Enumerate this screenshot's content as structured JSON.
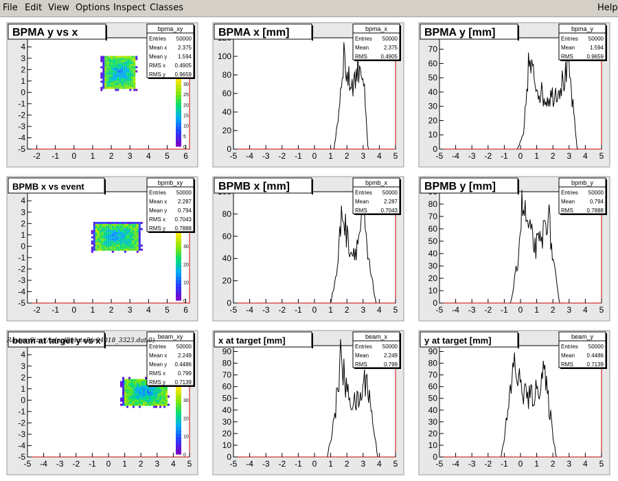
{
  "menu": {
    "file": "File",
    "edit": "Edit",
    "view": "View",
    "options": "Options",
    "inspect": "Inspect",
    "classes": "Classes",
    "help": "Help"
  },
  "caption": "Raster Size (/adaql2/data2/e04018_3323.dat.0)",
  "colors": {
    "pad_bg": "#e8e8e8",
    "frame_bg": "#ffffff",
    "axis_red": "#cc0000",
    "hist_line": "#000000"
  },
  "panels": [
    {
      "kind": "2d",
      "title": "BPMA y vs x",
      "stats": {
        "name": "bpma_xy",
        "rows": [
          [
            "Entries",
            "50000"
          ],
          [
            "Mean x",
            "2.375"
          ],
          [
            "Mean y",
            "1.594"
          ],
          [
            "RMS x",
            "0.4905"
          ],
          [
            "RMS y",
            "0.9659"
          ]
        ]
      },
      "xticks": [
        "-2",
        "-1",
        "0",
        "1",
        "2",
        "3",
        "4",
        "5",
        "6"
      ],
      "yticks": [
        "-5",
        "-4",
        "-3",
        "-2",
        "-1",
        "0",
        "1",
        "2",
        "3",
        "4"
      ],
      "zticks": [
        "0",
        "5",
        "10",
        "15",
        "20",
        "25",
        "30"
      ]
    },
    {
      "kind": "1d",
      "title": "BPMA x [mm]",
      "stats": {
        "name": "bpma_x",
        "rows": [
          [
            "Entries",
            "50000"
          ],
          [
            "Mean",
            "2.375"
          ],
          [
            "RMS",
            "0.4905"
          ]
        ]
      },
      "xticks": [
        "-5",
        "-4",
        "-3",
        "-2",
        "-1",
        "0",
        "1",
        "2",
        "3",
        "4",
        "5"
      ],
      "yticks": [
        "0",
        "20",
        "40",
        "60",
        "80",
        "100",
        "120"
      ]
    },
    {
      "kind": "1d",
      "title": "BPMA y [mm]",
      "stats": {
        "name": "bpma_y",
        "rows": [
          [
            "Entries",
            "50000"
          ],
          [
            "Mean",
            "1.594"
          ],
          [
            "RMS",
            "0.9659"
          ]
        ]
      },
      "xticks": [
        "-5",
        "-4",
        "-3",
        "-2",
        "-1",
        "0",
        "1",
        "2",
        "3",
        "4",
        "5"
      ],
      "yticks": [
        "0",
        "10",
        "20",
        "30",
        "40",
        "50",
        "60",
        "70"
      ]
    },
    {
      "kind": "2d",
      "title": "BPMB x vs event",
      "stats": {
        "name": "bpmb_xy",
        "rows": [
          [
            "Entries",
            "50000"
          ],
          [
            "Mean x",
            "2.287"
          ],
          [
            "Mean y",
            "0.794"
          ],
          [
            "RMS x",
            "0.7043"
          ],
          [
            "RMS y",
            "0.7888"
          ]
        ]
      },
      "xticks": [
        "-2",
        "-1",
        "0",
        "1",
        "2",
        "3",
        "4",
        "5",
        "6"
      ],
      "yticks": [
        "-5",
        "-4",
        "-3",
        "-2",
        "-1",
        "0",
        "1",
        "2",
        "3",
        "4"
      ],
      "zticks": [
        "0",
        "10",
        "20",
        "30"
      ]
    },
    {
      "kind": "1d",
      "title": "BPMB x [mm]",
      "stats": {
        "name": "bpmb_x",
        "rows": [
          [
            "Entries",
            "50000"
          ],
          [
            "Mean",
            "2.287"
          ],
          [
            "RMS",
            "0.7043"
          ]
        ]
      },
      "xticks": [
        "-5",
        "-4",
        "-3",
        "-2",
        "-1",
        "0",
        "1",
        "2",
        "3",
        "4",
        "5"
      ],
      "yticks": [
        "0",
        "20",
        "40",
        "60",
        "80",
        "100"
      ]
    },
    {
      "kind": "1d",
      "title": "BPMB y [mm]",
      "stats": {
        "name": "bpmb_y",
        "rows": [
          [
            "Entries",
            "50000"
          ],
          [
            "Mean",
            "0.794"
          ],
          [
            "RMS",
            "0.7888"
          ]
        ]
      },
      "xticks": [
        "-5",
        "-4",
        "-3",
        "-2",
        "-1",
        "0",
        "1",
        "2",
        "3",
        "4",
        "5"
      ],
      "yticks": [
        "0",
        "10",
        "20",
        "30",
        "40",
        "50",
        "60",
        "70",
        "80",
        "90"
      ]
    },
    {
      "kind": "2d",
      "title": "beam at target y vs x",
      "stats": {
        "name": "beam_xy",
        "rows": [
          [
            "Entries",
            "50000"
          ],
          [
            "Mean x",
            "2.249"
          ],
          [
            "Mean y",
            "0.4486"
          ],
          [
            "RMS x",
            "0.799"
          ],
          [
            "RMS y",
            "0.7139"
          ]
        ]
      },
      "xticks": [
        "-5",
        "-4",
        "-3",
        "-2",
        "-1",
        "0",
        "1",
        "2",
        "3",
        "4",
        "5"
      ],
      "yticks": [
        "-5",
        "-4",
        "-3",
        "-2",
        "-1",
        "0",
        "1",
        "2",
        "3",
        "4"
      ],
      "zticks": [
        "0",
        "10",
        "20",
        "30"
      ]
    },
    {
      "kind": "1d",
      "title": "x at target [mm]",
      "stats": {
        "name": "beam_x",
        "rows": [
          [
            "Entries",
            "50000"
          ],
          [
            "Mean",
            "2.249"
          ],
          [
            "RMS",
            "0.799"
          ]
        ]
      },
      "xticks": [
        "-5",
        "-4",
        "-3",
        "-2",
        "-1",
        "0",
        "1",
        "2",
        "3",
        "4",
        "5"
      ],
      "yticks": [
        "0",
        "10",
        "20",
        "30",
        "40",
        "50",
        "60",
        "70",
        "80",
        "90"
      ]
    },
    {
      "kind": "1d",
      "title": "y at target [mm]",
      "stats": {
        "name": "beam_y",
        "rows": [
          [
            "Entries",
            "50000"
          ],
          [
            "Mean",
            "0.4486"
          ],
          [
            "RMS",
            "0.7139"
          ]
        ]
      },
      "xticks": [
        "-5",
        "-4",
        "-3",
        "-2",
        "-1",
        "0",
        "1",
        "2",
        "3",
        "4",
        "5"
      ],
      "yticks": [
        "0",
        "10",
        "20",
        "30",
        "40",
        "50",
        "60",
        "70",
        "80",
        "90"
      ]
    }
  ],
  "chart_data": [
    {
      "type": "heatmap",
      "title": "BPMA y vs x",
      "xlim": [
        -2.5,
        6.2
      ],
      "ylim": [
        -5,
        4.8
      ],
      "z_range": [
        0,
        33
      ],
      "x_range_filled": [
        1.5,
        3.3
      ],
      "y_range_filled": [
        0.2,
        3.1
      ]
    },
    {
      "type": "line",
      "title": "BPMA x [mm]",
      "xlim": [
        -5,
        5
      ],
      "ylim": [
        0,
        120
      ],
      "x": [
        1.2,
        1.5,
        1.8,
        2.0,
        2.2,
        2.5,
        2.8,
        3.0,
        3.3
      ],
      "values": [
        0,
        40,
        105,
        80,
        70,
        75,
        95,
        80,
        0
      ]
    },
    {
      "type": "line",
      "title": "BPMA y [mm]",
      "xlim": [
        -5,
        5
      ],
      "ylim": [
        0,
        78
      ],
      "x": [
        -0.2,
        0.2,
        0.5,
        1.0,
        1.5,
        2.0,
        2.5,
        3.0,
        3.5
      ],
      "values": [
        0,
        10,
        60,
        45,
        35,
        38,
        45,
        55,
        0
      ]
    },
    {
      "type": "heatmap",
      "title": "BPMB x vs event",
      "xlim": [
        -2.5,
        6.2
      ],
      "ylim": [
        -5,
        4.8
      ],
      "z_range": [
        0,
        38
      ],
      "x_range_filled": [
        1.0,
        3.5
      ],
      "y_range_filled": [
        -0.5,
        2.0
      ]
    },
    {
      "type": "line",
      "title": "BPMB x [mm]",
      "xlim": [
        -5,
        5
      ],
      "ylim": [
        0,
        100
      ],
      "x": [
        1.0,
        1.4,
        1.7,
        2.0,
        2.3,
        2.6,
        3.0,
        3.3,
        3.8
      ],
      "values": [
        0,
        30,
        85,
        60,
        45,
        50,
        80,
        40,
        0
      ]
    },
    {
      "type": "line",
      "title": "BPMB y [mm]",
      "xlim": [
        -5,
        5
      ],
      "ylim": [
        0,
        90
      ],
      "x": [
        -0.6,
        -0.2,
        0.1,
        0.5,
        0.9,
        1.3,
        1.7,
        2.0,
        2.4
      ],
      "values": [
        0,
        30,
        80,
        60,
        45,
        50,
        75,
        35,
        0
      ]
    },
    {
      "type": "heatmap",
      "title": "beam at target y vs x",
      "xlim": [
        -5,
        5
      ],
      "ylim": [
        -5,
        4.8
      ],
      "z_range": [
        0,
        38
      ],
      "x_range_filled": [
        0.8,
        3.6
      ],
      "y_range_filled": [
        -0.6,
        1.8
      ]
    },
    {
      "type": "line",
      "title": "x at target [mm]",
      "xlim": [
        -5,
        5
      ],
      "ylim": [
        0,
        95
      ],
      "x": [
        0.8,
        1.3,
        1.6,
        2.0,
        2.4,
        2.8,
        3.2,
        3.5,
        3.9
      ],
      "values": [
        0,
        40,
        85,
        55,
        45,
        48,
        70,
        40,
        0
      ]
    },
    {
      "type": "line",
      "title": "y at target [mm]",
      "xlim": [
        -5,
        5
      ],
      "ylim": [
        0,
        95
      ],
      "x": [
        -1.2,
        -0.8,
        -0.4,
        0.0,
        0.5,
        1.0,
        1.4,
        1.8,
        2.2
      ],
      "values": [
        0,
        35,
        80,
        60,
        50,
        55,
        75,
        40,
        0
      ]
    }
  ]
}
